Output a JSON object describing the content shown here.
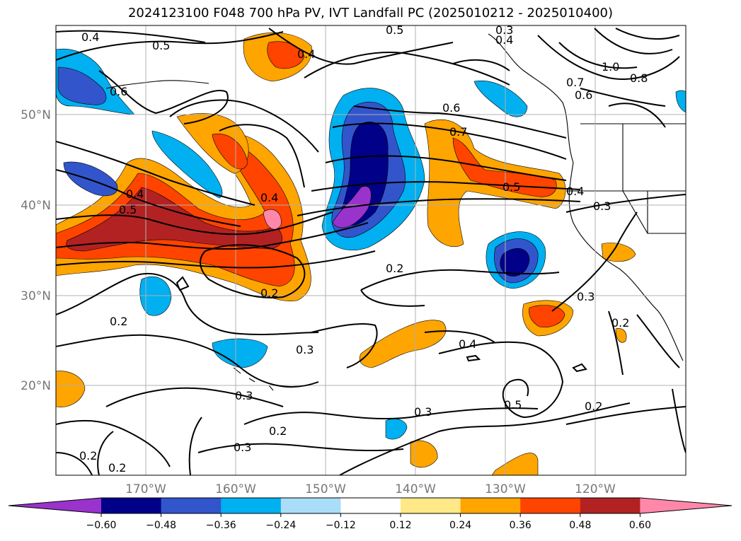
{
  "title": "2024123100 F048 700 hPa PV, IVT Landfall PC (2025010212 - 2025010400)",
  "lat_ticks": [
    "50°N",
    "40°N",
    "30°N",
    "20°N"
  ],
  "lon_ticks": [
    "170°W",
    "160°W",
    "150°W",
    "140°W",
    "130°W",
    "120°W"
  ],
  "colorbar": {
    "ticks": [
      "-0.60",
      "-0.48",
      "-0.36",
      "-0.24",
      "-0.12",
      "0.12",
      "0.24",
      "0.36",
      "0.48",
      "0.60"
    ],
    "colors": [
      "#9933cc",
      "#000088",
      "#3355cc",
      "#00b0f0",
      "#aaddf8",
      "#ffffff",
      "#ffe888",
      "#ffa500",
      "#ff4400",
      "#b22222",
      "#ff88aa"
    ]
  },
  "contour_labels": [
    "0.4",
    "0.5",
    "0.6",
    "0.4",
    "0.5",
    "0.3",
    "0.4",
    "1.0",
    "0.8",
    "0.7",
    "0.6",
    "0.6",
    "0.7",
    "0.5",
    "0.4",
    "0.3",
    "0.4",
    "0.5",
    "0.4",
    "0.2",
    "0.2",
    "0.2",
    "0.3",
    "0.2",
    "0.3",
    "0.4",
    "0.3",
    "0.3",
    "0.2",
    "0.3",
    "0.5",
    "0.2",
    "0.2",
    "0.2"
  ]
}
